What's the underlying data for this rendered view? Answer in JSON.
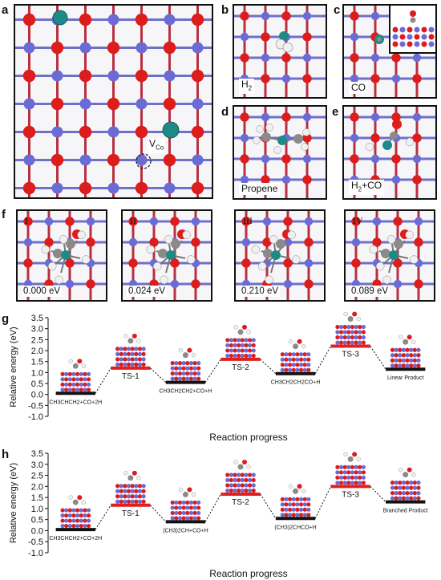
{
  "panel_labels": {
    "a": "a",
    "b": "b",
    "c": "c",
    "d": "d",
    "e": "e",
    "f": "f",
    "g": "g",
    "h": "h"
  },
  "panel_a": {
    "vacancy_label": "V",
    "vacancy_sub": "Co"
  },
  "panel_b": {
    "species": "H",
    "species_sub": "2"
  },
  "panel_c": {
    "species": "CO"
  },
  "panel_d": {
    "species": "Propene"
  },
  "panel_e": {
    "species_pre": "H",
    "species_sub": "2",
    "species_post": "+CO"
  },
  "panel_f": [
    {
      "roman": "I",
      "energy": "0.000 eV"
    },
    {
      "roman": "II",
      "energy": "0.024 eV"
    },
    {
      "roman": "III",
      "energy": "0.210 eV"
    },
    {
      "roman": "IV",
      "energy": "0.089 eV"
    }
  ],
  "colors": {
    "oxygen": "#dd1c1c",
    "cobalt_lattice": "#6b6bd6",
    "dopant": "#1e8a88",
    "carbon": "#8a8a8a",
    "hydrogen": "#f0f0f0",
    "ts_bar": "#e0201c",
    "state_bar": "#111111"
  },
  "chart_data": [
    {
      "type": "energy_profile",
      "panel": "g",
      "ylabel": "Relative energy (eV)",
      "xlabel": "Reaction progress",
      "ylim": [
        -1.0,
        3.5
      ],
      "yticks": [
        "3.5",
        "3.0",
        "2.5",
        "2.0",
        "1.5",
        "1.0",
        "0.5",
        "0.0",
        "-0.5",
        "-1.0"
      ],
      "states": [
        {
          "label": "CH3CHCH2+CO+2H",
          "energy": 0.05,
          "kind": "intermediate"
        },
        {
          "label": "TS-1",
          "energy": 1.2,
          "kind": "ts"
        },
        {
          "label": "CH3CH2CH2+CO+H",
          "energy": 0.55,
          "kind": "intermediate"
        },
        {
          "label": "TS-2",
          "energy": 1.6,
          "kind": "ts"
        },
        {
          "label": "CH3CH2CH2CO+H",
          "energy": 0.95,
          "kind": "intermediate"
        },
        {
          "label": "TS-3",
          "energy": 2.2,
          "kind": "ts"
        },
        {
          "label": "Linear Product",
          "energy": 1.15,
          "kind": "intermediate"
        }
      ]
    },
    {
      "type": "energy_profile",
      "panel": "h",
      "ylabel": "Relative energy (eV)",
      "xlabel": "Reaction progress",
      "ylim": [
        -1.0,
        3.5
      ],
      "yticks": [
        "3.5",
        "3.0",
        "2.5",
        "2.0",
        "1.5",
        "1.0",
        "0.5",
        "0.0",
        "-0.5",
        "-1.0"
      ],
      "states": [
        {
          "label": "CH3CHCH2+CO+2H",
          "energy": 0.05,
          "kind": "intermediate"
        },
        {
          "label": "TS-1",
          "energy": 1.15,
          "kind": "ts"
        },
        {
          "label": "(CH3)2CH+CO+H",
          "energy": 0.4,
          "kind": "intermediate"
        },
        {
          "label": "TS-2",
          "energy": 1.65,
          "kind": "ts"
        },
        {
          "label": "(CH3)2CHCO+H",
          "energy": 0.55,
          "kind": "intermediate"
        },
        {
          "label": "TS-3",
          "energy": 2.0,
          "kind": "ts"
        },
        {
          "label": "Branched Product",
          "energy": 1.3,
          "kind": "intermediate"
        }
      ]
    }
  ]
}
